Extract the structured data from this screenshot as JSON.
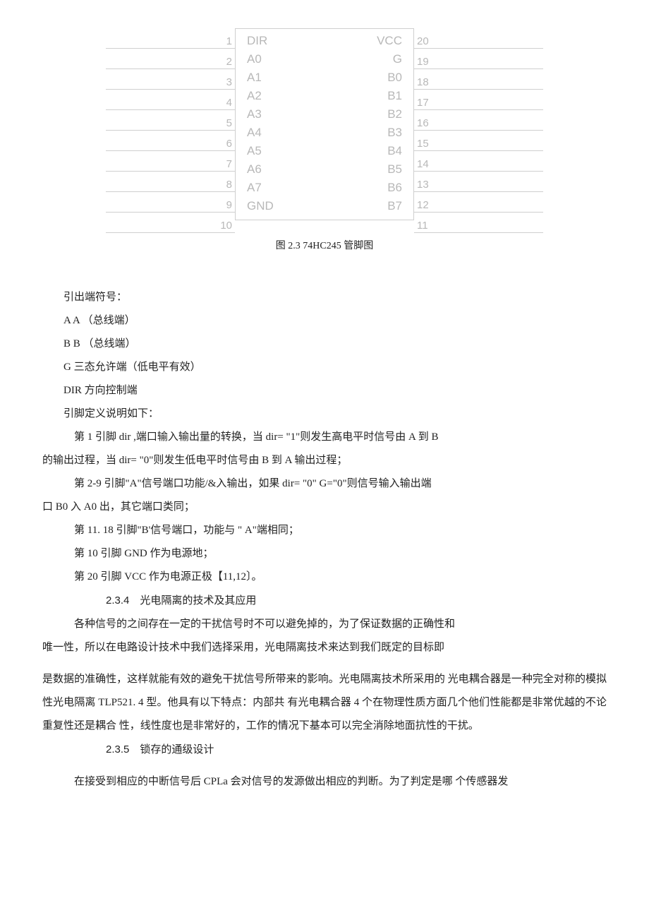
{
  "figure": {
    "left_pins": [
      "1",
      "2",
      "3",
      "4",
      "5",
      "6",
      "7",
      "8",
      "9",
      "10"
    ],
    "right_pins": [
      "20",
      "19",
      "18",
      "17",
      "16",
      "15",
      "14",
      "13",
      "12",
      "11"
    ],
    "left_labels": [
      "DIR",
      "A0",
      "A1",
      "A2",
      "A3",
      "A4",
      "A5",
      "A6",
      "A7",
      "GND"
    ],
    "right_labels": [
      "VCC",
      "G",
      "B0",
      "B1",
      "B2",
      "B3",
      "B4",
      "B5",
      "B6",
      "B7"
    ],
    "caption": "图 2.3 74HC245 管脚图"
  },
  "pin_symbol_heading": "引出端符号：",
  "sym_a": "A A （总线端）",
  "sym_b": "B B （总线端）",
  "sym_g": "G 三态允许端（低电平有效）",
  "sym_dir": "DIR 方向控制端",
  "pin_def_heading": "引脚定义说明如下：",
  "pin1_a": "第 1 引脚 dir ,端口输入输出量的转换，当 dir= \"1\"则发生高电平时信号由 A 到 B",
  "pin1_b": "的输出过程，当 dir= \"0\"则发生低电平时信号由 B 到 A 输出过程；",
  "pin2_a": "第 2-9 引脚\"A\"信号端口功能/&入输出，如果 dir= \"0\" G=\"0\"则信号输入输出端",
  "pin2_b": "口 B0 入 A0 出，其它端口类同；",
  "pin11": "第 11. 18 引脚\"B'信号端口，功能与 \" A\"端相同；",
  "pin10": "第 10 引脚 GND 作为电源地；",
  "pin20": "第 20 引脚 VCC 作为电源正极【11,12〕。",
  "sec234_num": "2.3.4",
  "sec234_title": "光电隔离的技术及其应用",
  "para234_a": "各种信号的之间存在一定的干扰信号时不可以避免掉的，为了保证数据的正确性和",
  "para234_b": "唯一性，所以在电路设计技术中我们选择采用，光电隔离技术来达到我们既定的目标即",
  "para234_c": "是数据的准确性，这样就能有效的避免干扰信号所带来的影响。光电隔离技术所采用的 光电耦合器是一种完全对称的模拟性光电隔离 TLP521. 4 型。他具有以下特点：内部共 有光电耦合器 4 个在物理性质方面几个他们性能都是非常优越的不论重复性还是耦合 性，线性度也是非常好的，工作的情况下基本可以完全消除地面抗性的干扰。",
  "sec235_num": "2.3.5",
  "sec235_title": "锁存的通级设计",
  "para235": "在接受到相应的中断信号后 CPLa 会对信号的发源做出相应的判断。为了判定是哪 个传感器发"
}
